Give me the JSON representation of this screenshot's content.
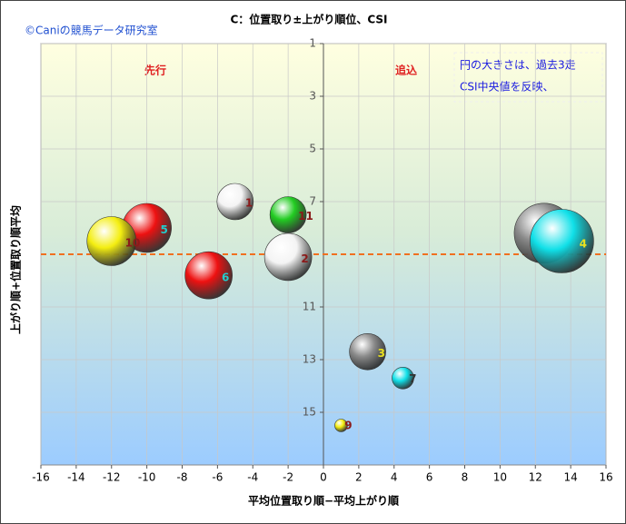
{
  "chart_data": {
    "type": "bubble",
    "title": "C：位置取り±上がり順位、CSI",
    "watermark": "©Caniの競馬データ研究室",
    "x_label": "平均位置取り順−平均上がり順",
    "y_label": "上がり順+位置取り順平均",
    "quadrant_labels": [
      "先行",
      "追込"
    ],
    "note": [
      "円の大きさは、過去3走",
      "CSI中央値を反映、"
    ],
    "xlim": [
      -16,
      16
    ],
    "xticks": [
      -16,
      -14,
      -12,
      -10,
      -8,
      -6,
      -4,
      -2,
      0,
      2,
      4,
      6,
      8,
      10,
      12,
      14,
      16
    ],
    "ylim": [
      17,
      1
    ],
    "yticks": [
      1,
      3,
      5,
      7,
      11,
      13,
      15
    ],
    "y_reversed": true,
    "grid": true,
    "hline": 9,
    "hline_color": "#f07020",
    "points": [
      {
        "label": "1",
        "x": -5,
        "y": 7.0,
        "size": 20,
        "color": "#f4f4f4",
        "label_color": "#8b1a1a"
      },
      {
        "label": "11",
        "x": -2,
        "y": 7.5,
        "size": 20,
        "color": "#22cc22",
        "label_color": "#8b1a1a"
      },
      {
        "label": "5",
        "x": -10,
        "y": 8.0,
        "size": 27,
        "color": "#ee1111",
        "label_color": "#22cccc"
      },
      {
        "label": "10",
        "x": -12,
        "y": 8.5,
        "size": 27,
        "color": "#f4ee10",
        "label_color": "#8b1a1a"
      },
      {
        "label": "2",
        "x": -2,
        "y": 9.1,
        "size": 26,
        "color": "#f4f4f4",
        "label_color": "#8b1a1a"
      },
      {
        "label": "6",
        "x": -6.5,
        "y": 9.8,
        "size": 26,
        "color": "#ee1111",
        "label_color": "#22cccc"
      },
      {
        "label": "8",
        "x": 12.5,
        "y": 8.2,
        "size": 33,
        "color": "#8a8a8a",
        "label_color": "#8b1a1a"
      },
      {
        "label": "4",
        "x": 13.5,
        "y": 8.5,
        "size": 35,
        "color": "#10e0e8",
        "label_color": "#e8e020"
      },
      {
        "label": "3",
        "x": 2.5,
        "y": 12.7,
        "size": 20,
        "color": "#8a8a8a",
        "label_color": "#e8e020"
      },
      {
        "label": "7",
        "x": 4.5,
        "y": 13.7,
        "size": 12,
        "color": "#10e0e8",
        "label_color": "#333333"
      },
      {
        "label": "9",
        "x": 1,
        "y": 15.5,
        "size": 7,
        "color": "#f4ee10",
        "label_color": "#8b1a1a"
      }
    ]
  }
}
